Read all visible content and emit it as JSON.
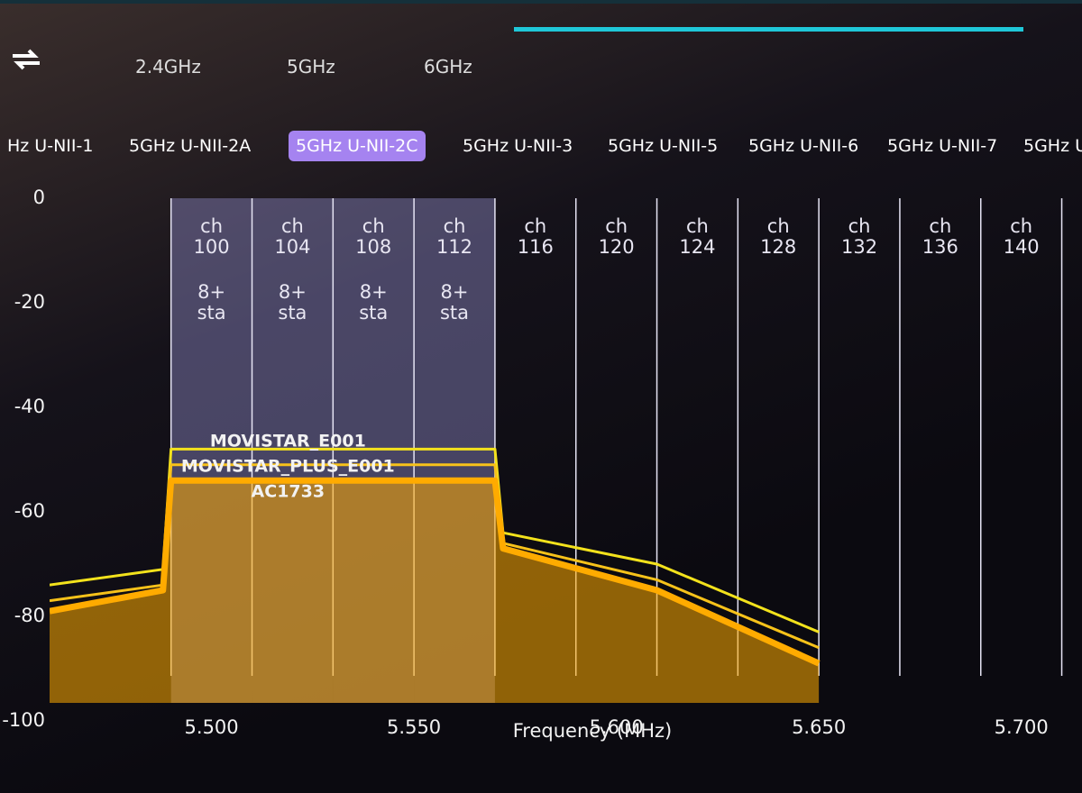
{
  "bands": [
    "2.4GHz",
    "5GHz",
    "6GHz"
  ],
  "subbands": [
    "Hz U-NII-1",
    "5GHz U-NII-2A",
    "5GHz U-NII-2C",
    "5GHz U-NII-3",
    "5GHz U-NII-5",
    "5GHz U-NII-6",
    "5GHz U-NII-7",
    "5GHz U"
  ],
  "selected_subband": 2,
  "channels": [
    {
      "ch": "ch 100",
      "sta": "8+ sta"
    },
    {
      "ch": "ch 104",
      "sta": "8+ sta"
    },
    {
      "ch": "ch 108",
      "sta": "8+ sta"
    },
    {
      "ch": "ch 112",
      "sta": "8+ sta"
    },
    {
      "ch": "ch 116"
    },
    {
      "ch": "ch 120"
    },
    {
      "ch": "ch 124"
    },
    {
      "ch": "ch 128"
    },
    {
      "ch": "ch 132"
    },
    {
      "ch": "ch 136"
    },
    {
      "ch": "ch 140"
    }
  ],
  "channel_edges": [
    5490,
    5510,
    5530,
    5550,
    5570,
    5590,
    5610,
    5630,
    5650,
    5670,
    5690,
    5710
  ],
  "chart_data": {
    "type": "area",
    "x_label": "Frequency (MHz)",
    "xlim": [
      5460,
      5715
    ],
    "xticks": [
      {
        "value": 5500,
        "label": "5.500"
      },
      {
        "value": 5550,
        "label": "5.550"
      },
      {
        "value": 5600,
        "label": "5.600"
      },
      {
        "value": 5650,
        "label": "5.650"
      },
      {
        "value": 5700,
        "label": "5.700"
      }
    ],
    "ylim": [
      -100,
      0
    ],
    "yticks": [
      0,
      -20,
      -40,
      -60,
      -80,
      -100
    ],
    "series": [
      {
        "name": "MOVISTAR_E001",
        "color": "#f3e21c",
        "fill": false,
        "x": [
          5460,
          5488,
          5490,
          5570,
          5572,
          5610,
          5650
        ],
        "values": [
          -74,
          -71,
          -48,
          -48,
          -64,
          -70,
          -83
        ]
      },
      {
        "name": "MOVISTAR_PLUS_E001",
        "color": "#f7c21a",
        "fill": false,
        "x": [
          5460,
          5488,
          5490,
          5570,
          5572,
          5610,
          5650
        ],
        "values": [
          -77,
          -74,
          -51,
          -51,
          -66,
          -73,
          -86
        ]
      },
      {
        "name": "AC1733",
        "color": "#ffab00",
        "fill": true,
        "x": [
          5460,
          5488,
          5490,
          5570,
          5572,
          5610,
          5650
        ],
        "values": [
          -79,
          -75,
          -54,
          -54,
          -67,
          -75,
          -89
        ]
      }
    ]
  }
}
